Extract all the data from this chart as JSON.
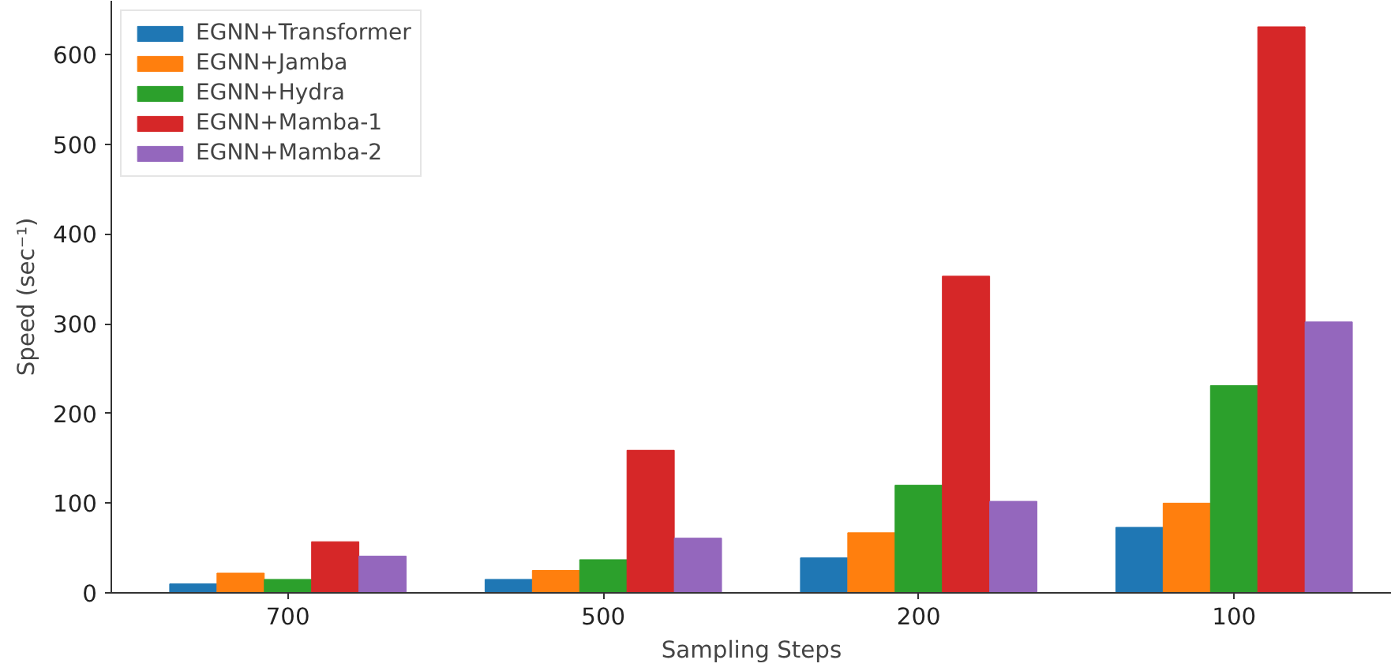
{
  "chart_data": {
    "type": "bar",
    "xlabel": "Sampling Steps",
    "ylabel": "Speed (sec⁻¹)",
    "categories": [
      "700",
      "500",
      "200",
      "100"
    ],
    "series": [
      {
        "name": "EGNN+Transformer",
        "color": "#1f77b4",
        "values": [
          10,
          15,
          39,
          73
        ]
      },
      {
        "name": "EGNN+Jamba",
        "color": "#ff7f0e",
        "values": [
          22,
          25,
          67,
          100
        ]
      },
      {
        "name": "EGNN+Hydra",
        "color": "#2ca02c",
        "values": [
          15,
          37,
          120,
          231
        ]
      },
      {
        "name": "EGNN+Mamba-1",
        "color": "#d62728",
        "values": [
          57,
          159,
          353,
          631
        ]
      },
      {
        "name": "EGNN+Mamba-2",
        "color": "#9467bd",
        "values": [
          41,
          61,
          102,
          302
        ]
      }
    ],
    "ylim": [
      0,
      660
    ],
    "yticks": [
      0,
      100,
      200,
      300,
      400,
      500,
      600
    ],
    "grid": false,
    "legend": "top left"
  }
}
